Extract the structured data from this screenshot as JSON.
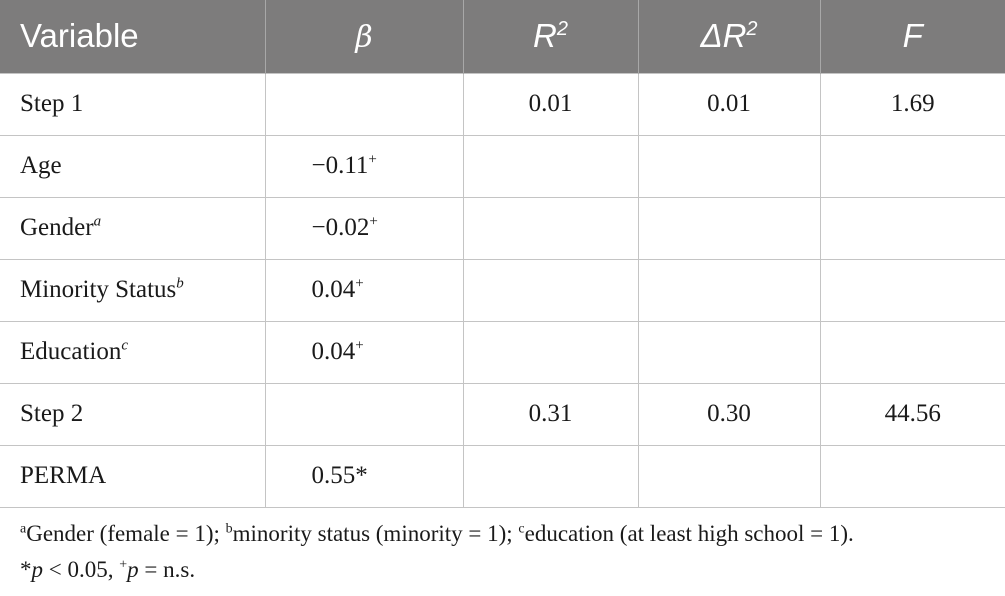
{
  "table": {
    "headers": [
      {
        "label": "Variable",
        "sup": ""
      },
      {
        "label": "β",
        "sup": ""
      },
      {
        "label": "R",
        "sup": "2"
      },
      {
        "label": "ΔR",
        "sup": "2"
      },
      {
        "label": "F",
        "sup": ""
      }
    ],
    "rows": [
      {
        "variable": "Step 1",
        "var_sup": "",
        "beta": "",
        "beta_sup": "",
        "r2": "0.01",
        "dr2": "0.01",
        "f": "1.69"
      },
      {
        "variable": "Age",
        "var_sup": "",
        "beta": "−0.11",
        "beta_sup": "+",
        "r2": "",
        "dr2": "",
        "f": ""
      },
      {
        "variable": "Gender",
        "var_sup": "a",
        "beta": "−0.02",
        "beta_sup": "+",
        "r2": "",
        "dr2": "",
        "f": ""
      },
      {
        "variable": "Minority Status",
        "var_sup": "b",
        "beta": "0.04",
        "beta_sup": "+",
        "r2": "",
        "dr2": "",
        "f": ""
      },
      {
        "variable": "Education",
        "var_sup": "c",
        "beta": "0.04",
        "beta_sup": "+",
        "r2": "",
        "dr2": "",
        "f": ""
      },
      {
        "variable": "Step 2",
        "var_sup": "",
        "beta": "",
        "beta_sup": "",
        "r2": "0.31",
        "dr2": "0.30",
        "f": "44.56"
      },
      {
        "variable": "PERMA",
        "var_sup": "",
        "beta": "0.55*",
        "beta_sup": "",
        "r2": "",
        "dr2": "",
        "f": ""
      }
    ]
  },
  "notes": {
    "line1": {
      "a_mark": "a",
      "a_text": "Gender (female = 1); ",
      "b_mark": "b",
      "b_text": "minority status (minority = 1); ",
      "c_mark": "c",
      "c_text": "education (at least high school = 1)."
    },
    "line2": {
      "star": "*",
      "p1": "p",
      "p1_rest": " < 0.05, ",
      "plus": "+",
      "p2": "p",
      "p2_rest": " = n.s."
    }
  }
}
